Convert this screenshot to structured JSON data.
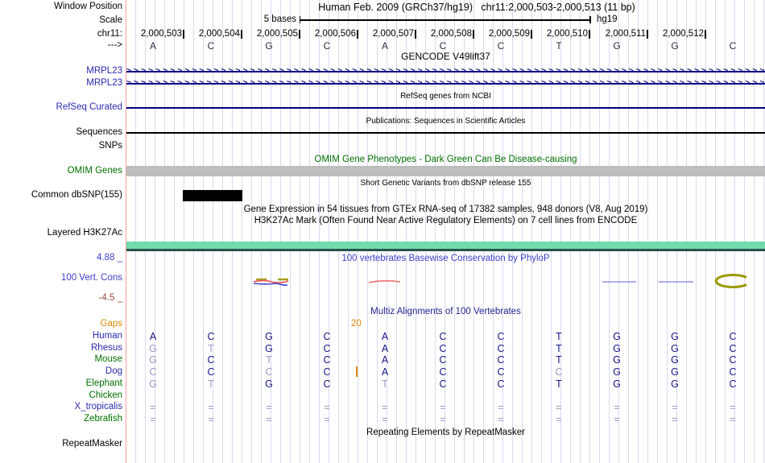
{
  "colors": {
    "navy_line": "#000080",
    "label_blue": "#2a2ab0",
    "title_navy": "#22228e",
    "cons_blue": "#3c3ccc",
    "maroon": "#9b4a42",
    "green": "#007000",
    "orange": "#dd8800",
    "dark_letter": "#15158a",
    "dim_letter": "#9a9ac8",
    "grid": "#d9d9ef",
    "salmon": "#f4a0a0",
    "teal_bar": "#6fdcae",
    "teal_dark": "#27544c",
    "omim_gray": "#bdbdbd",
    "dbsnp_black": "#000000"
  },
  "header": {
    "left_labels": {
      "window_position": "Window Position",
      "scale": "Scale",
      "chrom": "chr11:",
      "strand": "--->"
    },
    "assembly": "Human Feb. 2009 (GRCh37/hg19)",
    "position": "chr11:2,000,503-2,000,513 (11 bp)",
    "scale_label": "5 bases",
    "genome": "hg19",
    "coordinates": [
      "2,000,503",
      "2,000,504",
      "2,000,505",
      "2,000,506",
      "2,000,507",
      "2,000,508",
      "2,000,509",
      "2,000,510",
      "2,000,511",
      "2,000,512"
    ],
    "bases": [
      "A",
      "C",
      "G",
      "C",
      "A",
      "C",
      "C",
      "T",
      "G",
      "G",
      "C"
    ]
  },
  "tracks": {
    "gencode": {
      "title": "GENCODE V49lift37",
      "gene1": "MRPL23",
      "gene2": "MRPL23"
    },
    "refseq": {
      "title": "RefSeq genes from NCBI",
      "label": "RefSeq Curated"
    },
    "publications": {
      "title": "Publications: Sequences in Scientific Articles",
      "label": "Sequences"
    },
    "snps": {
      "label": "SNPs"
    },
    "omim": {
      "title": "OMIM Gene Phenotypes - Dark Green Can Be Disease-causing",
      "label": "OMIM Genes"
    },
    "dbsnp": {
      "title": "Short Genetic Variants from dbSNP release 155",
      "label": "Common dbSNP(155)"
    },
    "gtex": {
      "title": "Gene Expression in 54 tissues from GTEx RNA-seq of 17382 samples, 948 donors (V8, Aug 2019)"
    },
    "h3k27ac": {
      "title": "H3K27Ac Mark (Often Found Near Active Regulatory Elements) on 7 cell lines from ENCODE",
      "label": "Layered H3K27Ac"
    },
    "conservation": {
      "title": "100 vertebrates Basewise Conservation by PhyloP",
      "label": "100 Vert. Cons",
      "max_label": "4.88 _",
      "min_label": "-4.5 _"
    },
    "repeatmasker": {
      "title": "Repeating Elements by RepeatMasker",
      "label": "RepeatMasker"
    }
  },
  "multiz": {
    "title": "Multiz Alignments of 100 Vertebrates",
    "gaps_label": "Gaps",
    "gap_value": "20",
    "rows": [
      {
        "species": "Human",
        "cls": "navy",
        "bases": "ACGCACCTGGC",
        "dim": []
      },
      {
        "species": "Rhesus",
        "cls": "navy",
        "bases": "GTGCACCTGGC",
        "dim": [
          0,
          1
        ]
      },
      {
        "species": "Mouse",
        "cls": "green",
        "bases": "GCTCACCTGGC",
        "dim": [
          0,
          2
        ]
      },
      {
        "species": "Dog",
        "cls": "navy",
        "bases": "CCCCACCCGGC",
        "dim": [
          0,
          2,
          7
        ]
      },
      {
        "species": "Elephant",
        "cls": "green",
        "bases": "GTGCTCCTGGC",
        "dim": [
          0,
          1,
          4
        ]
      },
      {
        "species": "Chicken",
        "cls": "green",
        "bases": "",
        "dim": []
      },
      {
        "species": "X_tropicalis",
        "cls": "navy",
        "bases": "===========",
        "dim": [
          0,
          1,
          2,
          3,
          4,
          5,
          6,
          7,
          8,
          9,
          10
        ]
      },
      {
        "species": "Zebrafish",
        "cls": "green",
        "bases": "===========",
        "dim": [
          0,
          1,
          2,
          3,
          4,
          5,
          6,
          7,
          8,
          9,
          10
        ]
      }
    ],
    "insertion": {
      "row": "Dog",
      "after_column": 3
    }
  }
}
